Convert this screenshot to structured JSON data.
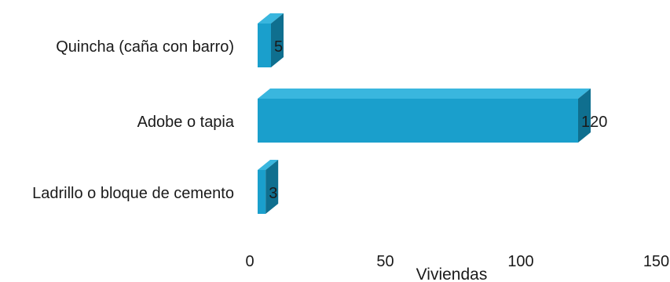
{
  "chart_data": {
    "type": "bar",
    "orientation": "horizontal",
    "style": "3d",
    "title": "",
    "xlabel": "Viviendas",
    "ylabel": "",
    "categories": [
      "Quincha (caña con barro)",
      "Adobe o tapia",
      "Ladrillo o bloque de cemento"
    ],
    "values": [
      5,
      120,
      3
    ],
    "value_labels": [
      "5",
      "120",
      "3"
    ],
    "xlim": [
      0,
      150
    ],
    "x_ticks": [
      "0",
      "50",
      "100",
      "150"
    ],
    "grid": false,
    "legend": "none",
    "colors": {
      "front": "#1a9fcc",
      "top": "#39b6de",
      "side": "#0f6f8f"
    }
  }
}
